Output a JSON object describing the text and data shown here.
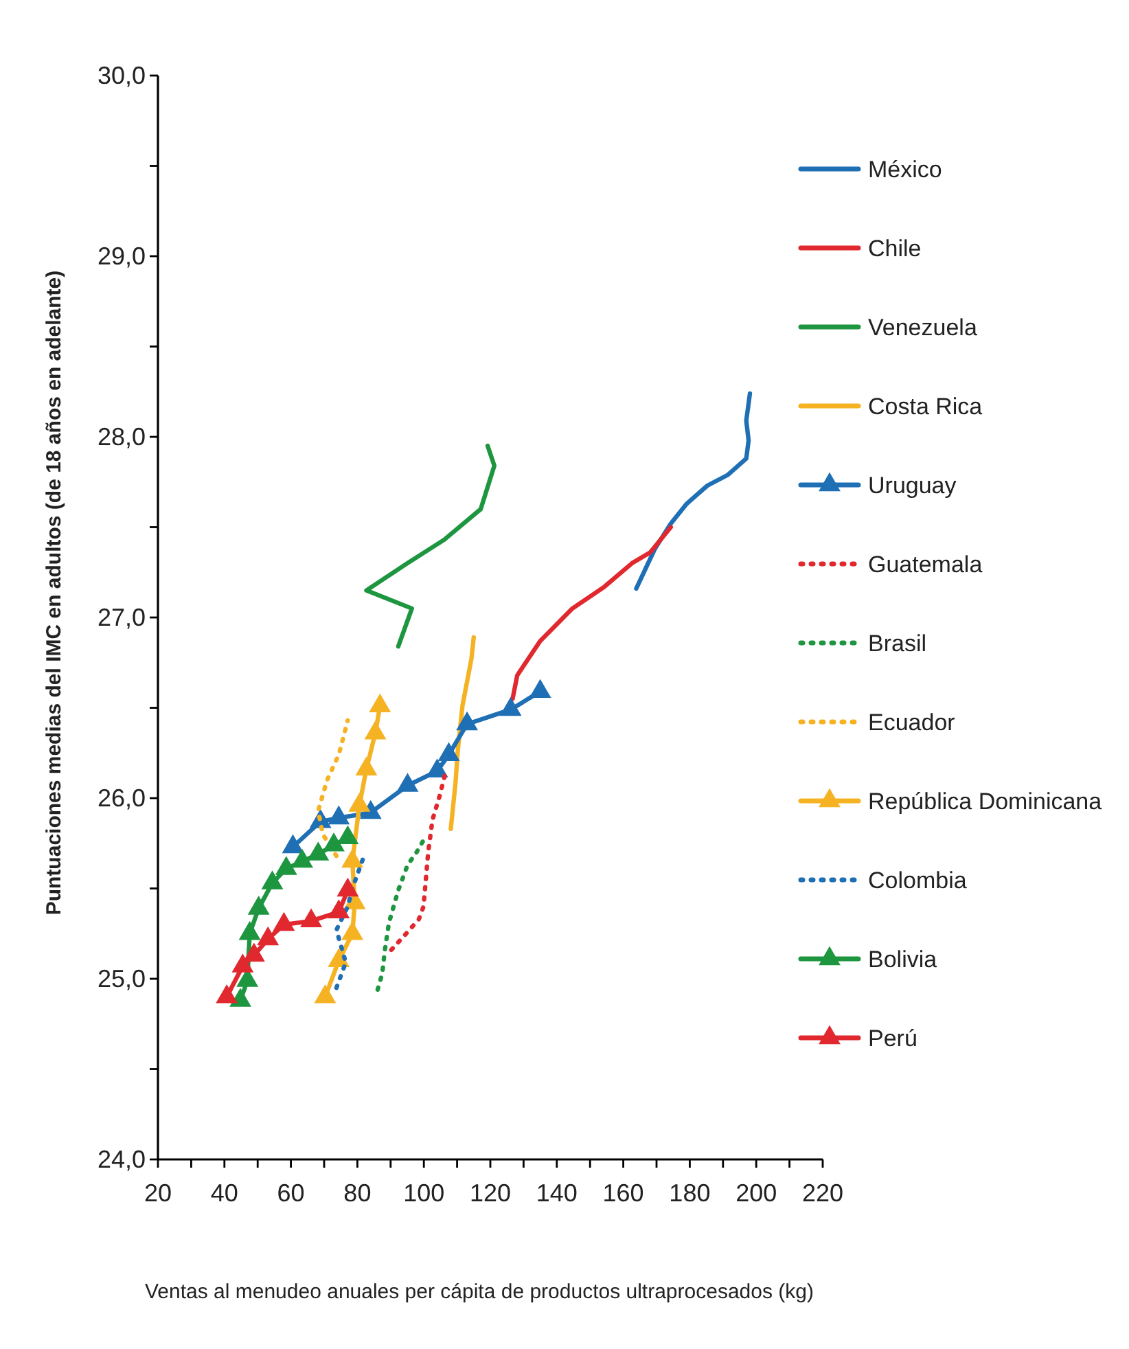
{
  "chart_data": {
    "type": "line",
    "xlabel": "Ventas al menudeo anuales per cápita de productos ultraprocesados (kg)",
    "ylabel": "Puntuaciones medias del IMC en adultos (de 18 años en adelante)",
    "xlim": [
      20,
      220
    ],
    "ylim": [
      24,
      30
    ],
    "xticks": [
      20,
      {
        "value": 30,
        "label": null
      },
      40,
      {
        "value": 50,
        "label": null
      },
      60,
      {
        "value": 70,
        "label": null
      },
      80,
      {
        "value": 90,
        "label": null
      },
      100,
      {
        "value": 110,
        "label": null
      },
      120,
      {
        "value": 130,
        "label": null
      },
      140,
      {
        "value": 150,
        "label": null
      },
      160,
      {
        "value": 170,
        "label": null
      },
      180,
      {
        "value": 190,
        "label": null
      },
      200,
      {
        "value": 210,
        "label": null
      },
      220
    ],
    "yticks": [
      {
        "value": 24,
        "label": "24,0"
      },
      {
        "value": 24.5,
        "label": null
      },
      {
        "value": 25,
        "label": "25,0"
      },
      {
        "value": 25.5,
        "label": null
      },
      {
        "value": 26,
        "label": "26,0"
      },
      {
        "value": 26.5,
        "label": null
      },
      {
        "value": 27,
        "label": "27,0"
      },
      {
        "value": 27.5,
        "label": null
      },
      {
        "value": 28,
        "label": "28,0"
      },
      {
        "value": 28.5,
        "label": null
      },
      {
        "value": 29,
        "label": "29,0"
      },
      {
        "value": 29.5,
        "label": null
      },
      {
        "value": 30,
        "label": "30,0"
      }
    ],
    "grid": false,
    "legend": "right",
    "series": [
      {
        "name": "México",
        "color": "#1f6fb5",
        "marker": "none",
        "line_style": "solid",
        "x": [
          163.9,
          169.5,
          174.3,
          179.1,
          185.3,
          191.5,
          197.0,
          197.7,
          197.0,
          198.1
        ],
        "values": [
          27.16,
          27.38,
          27.52,
          27.63,
          27.73,
          27.79,
          27.88,
          27.98,
          28.09,
          28.24
        ]
      },
      {
        "name": "Chile",
        "color": "#e0282e",
        "marker": "none",
        "line_style": "solid",
        "x": [
          126.7,
          128.1,
          135.0,
          144.7,
          154.3,
          162.6,
          168.1,
          174.3
        ],
        "values": [
          26.55,
          26.68,
          26.87,
          27.05,
          27.17,
          27.3,
          27.36,
          27.5
        ]
      },
      {
        "name": "Venezuela",
        "color": "#1e9640",
        "marker": "none",
        "line_style": "solid",
        "x": [
          92.3,
          96.4,
          82.7,
          95.0,
          106.1,
          117.1,
          121.2,
          119.2
        ],
        "values": [
          26.84,
          27.05,
          27.15,
          27.3,
          27.43,
          27.6,
          27.84,
          27.95
        ]
      },
      {
        "name": "Costa Rica",
        "color": "#f5b324",
        "marker": "none",
        "line_style": "solid",
        "x": [
          108.1,
          109.5,
          110.2,
          111.6,
          114.3,
          115.0
        ],
        "values": [
          25.83,
          26.08,
          26.26,
          26.51,
          26.77,
          26.89
        ]
      },
      {
        "name": "Uruguay",
        "color": "#1f6fb5",
        "marker": "triangle",
        "line_style": "solid",
        "x": [
          60.6,
          68.9,
          74.4,
          84.0,
          95.1,
          104.0,
          107.5,
          113.0,
          126.1,
          135.0
        ],
        "values": [
          25.73,
          25.87,
          25.89,
          25.92,
          26.07,
          26.15,
          26.24,
          26.41,
          26.49,
          26.59
        ]
      },
      {
        "name": "Guatemala",
        "color": "#e0282e",
        "marker": "none",
        "line_style": "dotted",
        "x": [
          90.2,
          93.7,
          98.5,
          99.9,
          100.6,
          101.3,
          102.6,
          104.7,
          106.8
        ],
        "values": [
          25.16,
          25.23,
          25.33,
          25.4,
          25.55,
          25.7,
          25.88,
          26.01,
          26.16
        ]
      },
      {
        "name": "Brasil",
        "color": "#1e9640",
        "marker": "none",
        "line_style": "dotted",
        "x": [
          86.1,
          87.5,
          88.2,
          89.5,
          92.3,
          95.1,
          97.8,
          100.6
        ],
        "values": [
          24.94,
          25.03,
          25.15,
          25.31,
          25.49,
          25.63,
          25.7,
          25.79
        ]
      },
      {
        "name": "Ecuador",
        "color": "#f5b324",
        "marker": "none",
        "line_style": "dotted",
        "x": [
          73.7,
          69.6,
          68.2,
          70.9,
          74.4,
          77.1
        ],
        "values": [
          25.68,
          25.8,
          25.93,
          26.1,
          26.24,
          26.43
        ]
      },
      {
        "name": "República Dominicana",
        "color": "#f5b324",
        "marker": "triangle",
        "line_style": "solid",
        "x": [
          70.3,
          74.4,
          78.5,
          79.2,
          78.5,
          80.6,
          82.7,
          85.4,
          86.8
        ],
        "values": [
          24.9,
          25.1,
          25.25,
          25.42,
          25.65,
          25.96,
          26.16,
          26.36,
          26.51
        ]
      },
      {
        "name": "Colombia",
        "color": "#1f6fb5",
        "marker": "none",
        "line_style": "dotted",
        "x": [
          73.7,
          76.5,
          75.1,
          73.7,
          77.1,
          78.5,
          82.0
        ],
        "values": [
          24.95,
          25.09,
          25.18,
          25.27,
          25.4,
          25.5,
          25.68
        ]
      },
      {
        "name": "Bolivia",
        "color": "#1e9640",
        "marker": "triangle",
        "line_style": "solid",
        "x": [
          44.8,
          46.9,
          47.6,
          50.3,
          54.4,
          58.6,
          63.4,
          68.2,
          72.9,
          77.1
        ],
        "values": [
          24.88,
          24.99,
          25.25,
          25.39,
          25.53,
          25.61,
          25.65,
          25.69,
          25.74,
          25.78
        ]
      },
      {
        "name": "Perú",
        "color": "#e0282e",
        "marker": "triangle",
        "line_style": "solid",
        "x": [
          40.7,
          45.5,
          48.9,
          53.1,
          57.9,
          66.1,
          74.4,
          77.1
        ],
        "values": [
          24.9,
          25.07,
          25.13,
          25.22,
          25.3,
          25.32,
          25.37,
          25.49
        ]
      }
    ]
  }
}
